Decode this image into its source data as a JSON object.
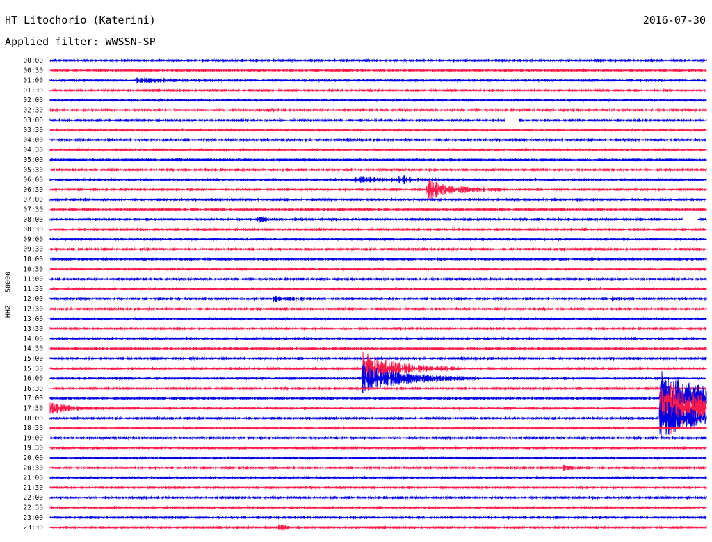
{
  "header": {
    "station": "HT Litochorio (Katerini)",
    "date": "2016-07-30",
    "filter": "Applied filter: WWSSN-SP",
    "channel": "HHZ - 50000"
  },
  "colors": {
    "even_trace": "#0000e6",
    "odd_trace": "#ff1a4a"
  },
  "chart_data": {
    "type": "line",
    "title": "HT Litochorio (Katerini)",
    "ylabel": "HHZ - 50000",
    "row_labels": [
      "00:00",
      "00:30",
      "01:00",
      "01:30",
      "02:00",
      "02:30",
      "03:00",
      "03:30",
      "04:00",
      "04:30",
      "05:00",
      "05:30",
      "06:00",
      "06:30",
      "07:00",
      "07:30",
      "08:00",
      "08:30",
      "09:00",
      "09:30",
      "10:00",
      "10:30",
      "11:00",
      "11:30",
      "12:00",
      "12:30",
      "13:00",
      "13:30",
      "14:00",
      "14:30",
      "15:00",
      "15:30",
      "16:00",
      "16:30",
      "17:00",
      "17:30",
      "18:00",
      "18:30",
      "19:00",
      "19:30",
      "20:00",
      "20:30",
      "21:00",
      "21:30",
      "22:00",
      "22:30",
      "23:00",
      "23:30"
    ],
    "row_minutes": 30,
    "events": [
      {
        "row": 2,
        "minute": 4.0,
        "amplitude": 3,
        "duration": 1.5
      },
      {
        "row": 12,
        "minute": 14.0,
        "amplitude": 3,
        "duration": 2.0
      },
      {
        "row": 12,
        "minute": 16.0,
        "amplitude": 8,
        "duration": 0.3
      },
      {
        "row": 13,
        "minute": 17.2,
        "amplitude": 15,
        "duration": 1.2
      },
      {
        "row": 16,
        "minute": 9.5,
        "amplitude": 3,
        "duration": 1.0
      },
      {
        "row": 24,
        "minute": 10.2,
        "amplitude": 4,
        "duration": 0.8
      },
      {
        "row": 24,
        "minute": 25.7,
        "amplitude": 4,
        "duration": 0.3
      },
      {
        "row": 31,
        "minute": 14.3,
        "amplitude": 25,
        "duration": 1.5
      },
      {
        "row": 32,
        "minute": 14.3,
        "amplitude": 22,
        "duration": 1.8
      },
      {
        "row": 34,
        "minute": 27.9,
        "amplitude": 40,
        "duration": 2.2
      },
      {
        "row": 35,
        "minute": 0.0,
        "amplitude": 8,
        "duration": 1.0
      },
      {
        "row": 35,
        "minute": 27.9,
        "amplitude": 45,
        "duration": 2.2
      },
      {
        "row": 36,
        "minute": 27.9,
        "amplitude": 30,
        "duration": 1.5
      },
      {
        "row": 41,
        "minute": 23.5,
        "amplitude": 5,
        "duration": 0.3
      },
      {
        "row": 47,
        "minute": 10.5,
        "amplitude": 3,
        "duration": 0.5
      }
    ],
    "gaps": [
      {
        "row": 6,
        "start": 20.8,
        "end": 21.4
      },
      {
        "row": 16,
        "start": 28.9,
        "end": 29.6
      }
    ]
  }
}
